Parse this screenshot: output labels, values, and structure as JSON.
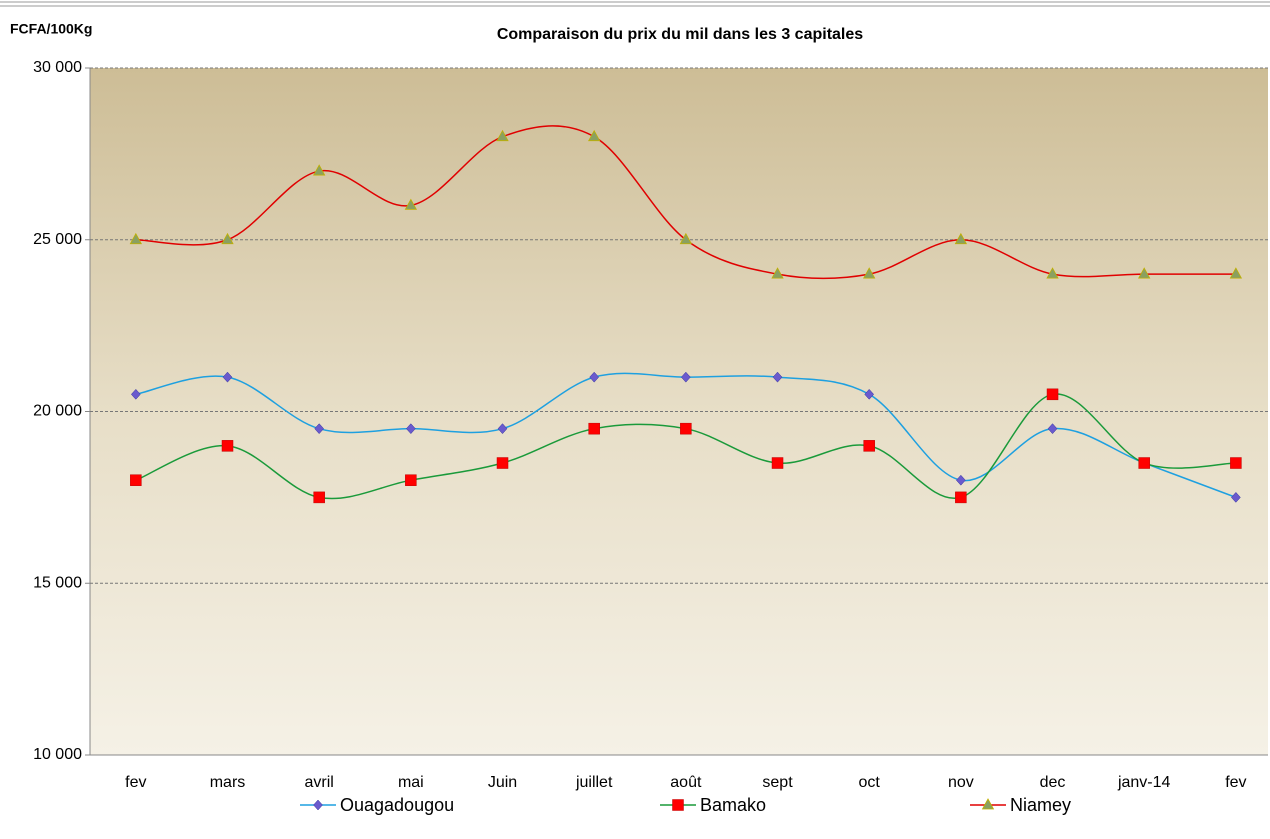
{
  "chart_data": {
    "type": "line",
    "title": "Comparaison du prix du mil dans les 3 capitales",
    "y_label": "FCFA/100Kg",
    "categories": [
      "fev",
      "mars",
      "avril",
      "mai",
      "Juin",
      "juillet",
      "août",
      "sept",
      "oct",
      "nov",
      "dec",
      "janv-14",
      "fev"
    ],
    "series": [
      {
        "name": "Ouagadougou",
        "color": "#1ea0e0",
        "marker": "diamond",
        "marker_color": "#6a5acd",
        "values": [
          20500,
          21000,
          19500,
          19500,
          19500,
          21000,
          21000,
          21000,
          20500,
          18000,
          19500,
          18500,
          17500
        ]
      },
      {
        "name": "Bamako",
        "color": "#1a9a3a",
        "marker": "square",
        "marker_color": "#ff0000",
        "values": [
          18000,
          19000,
          17500,
          18000,
          18500,
          19500,
          19500,
          18500,
          19000,
          17500,
          20500,
          18500,
          18500
        ]
      },
      {
        "name": "Niamey",
        "color": "#e00000",
        "marker": "triangle",
        "marker_color": "#8aa060",
        "values": [
          25000,
          25000,
          27000,
          26000,
          28000,
          28000,
          25000,
          24000,
          24000,
          25000,
          24000,
          24000,
          24000
        ]
      }
    ],
    "ylim": [
      10000,
      30000
    ],
    "yticks": [
      {
        "value": 10000,
        "label": "10 000"
      },
      {
        "value": 15000,
        "label": "15 000"
      },
      {
        "value": 20000,
        "label": "20 000"
      },
      {
        "value": 25000,
        "label": "25 000"
      },
      {
        "value": 30000,
        "label": "30 000"
      }
    ],
    "grid": true,
    "smooth": true,
    "legend": "bottom"
  }
}
